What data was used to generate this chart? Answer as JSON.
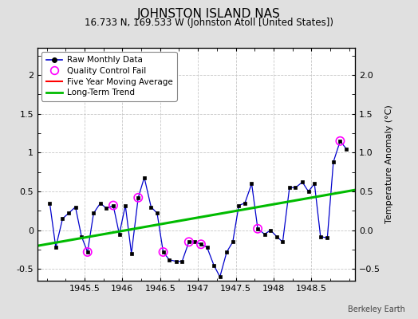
{
  "title": "JOHNSTON ISLAND NAS",
  "subtitle": "16.733 N, 169.533 W (Johnston Atoll [United States])",
  "watermark": "Berkeley Earth",
  "ylabel": "Temperature Anomaly (°C)",
  "xlim": [
    1944.88,
    1949.08
  ],
  "ylim": [
    -0.65,
    2.35
  ],
  "xticks": [
    1945.5,
    1946.0,
    1946.5,
    1947.0,
    1947.5,
    1948.0,
    1948.5
  ],
  "xticklabels": [
    "1945.5",
    "1946",
    "1946.5",
    "1947",
    "1947.5",
    "1948",
    "1948.5"
  ],
  "yticks": [
    -0.5,
    0.0,
    0.5,
    1.0,
    1.5,
    2.0
  ],
  "raw_x": [
    1945.04,
    1945.12,
    1945.21,
    1945.29,
    1945.38,
    1945.46,
    1945.54,
    1945.62,
    1945.71,
    1945.79,
    1945.88,
    1945.96,
    1946.04,
    1946.12,
    1946.21,
    1946.29,
    1946.38,
    1946.46,
    1946.54,
    1946.62,
    1946.71,
    1946.79,
    1946.88,
    1946.96,
    1947.04,
    1947.12,
    1947.21,
    1947.29,
    1947.38,
    1947.46,
    1947.54,
    1947.62,
    1947.71,
    1947.79,
    1947.88,
    1947.96,
    1948.04,
    1948.12,
    1948.21,
    1948.29,
    1948.38,
    1948.46,
    1948.54,
    1948.62,
    1948.71,
    1948.79,
    1948.88,
    1948.96
  ],
  "raw_y": [
    0.35,
    -0.22,
    0.15,
    0.22,
    0.3,
    -0.08,
    -0.28,
    0.22,
    0.35,
    0.28,
    0.32,
    -0.05,
    0.32,
    -0.3,
    0.42,
    0.68,
    0.3,
    0.22,
    -0.28,
    -0.38,
    -0.4,
    -0.4,
    -0.15,
    -0.15,
    -0.18,
    -0.22,
    -0.45,
    -0.6,
    -0.28,
    -0.15,
    0.32,
    0.35,
    0.6,
    0.02,
    -0.05,
    0.0,
    -0.08,
    -0.15,
    0.55,
    0.55,
    0.62,
    0.5,
    0.6,
    -0.08,
    -0.1,
    0.88,
    1.15,
    1.05
  ],
  "qc_fail_x": [
    1945.54,
    1945.88,
    1946.21,
    1946.54,
    1946.88,
    1947.04,
    1947.79,
    1948.88
  ],
  "qc_fail_y": [
    -0.28,
    0.32,
    0.42,
    -0.28,
    -0.15,
    -0.18,
    0.02,
    1.15
  ],
  "trend_x": [
    1944.88,
    1949.08
  ],
  "trend_y": [
    -0.2,
    0.52
  ],
  "bg_color": "#e0e0e0",
  "plot_bg_color": "#ffffff",
  "raw_line_color": "#0000cc",
  "raw_marker_color": "#000000",
  "qc_color": "#ff00ff",
  "trend_color": "#00bb00",
  "ma_color": "#ff0000",
  "grid_color": "#c8c8c8",
  "title_fontsize": 11,
  "subtitle_fontsize": 8.5,
  "tick_fontsize": 8,
  "ylabel_fontsize": 8
}
